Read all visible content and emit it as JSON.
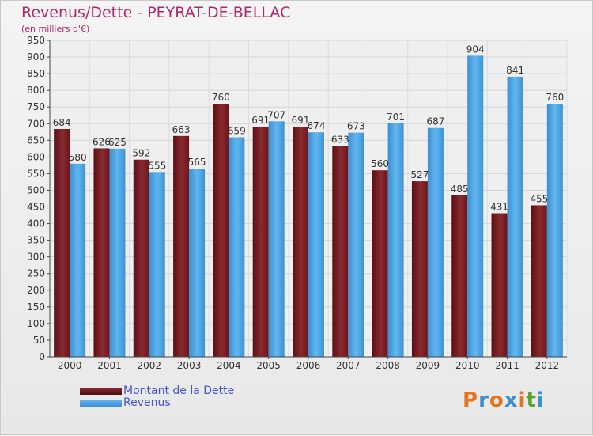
{
  "title": "Revenus/Dette - PEYRAT-DE-BELLAC",
  "subtitle": "(en milliers d'€)",
  "logo_text": "Proxiti",
  "chart_data": {
    "type": "bar",
    "title": "Revenus/Dette - PEYRAT-DE-BELLAC",
    "ylabel": "(en milliers d'€)",
    "ylim": [
      0,
      950
    ],
    "ytick_step": 50,
    "grid": true,
    "legend_position": "bottom-left",
    "categories": [
      "2000",
      "2001",
      "2002",
      "2003",
      "2004",
      "2005",
      "2006",
      "2007",
      "2008",
      "2009",
      "2010",
      "2011",
      "2012"
    ],
    "series": [
      {
        "name": "Montant de la Dette",
        "color": "#7a1f24",
        "values": [
          684,
          626,
          592,
          663,
          760,
          691,
          691,
          633,
          560,
          527,
          485,
          431,
          455
        ]
      },
      {
        "name": "Revenus",
        "color": "#4aa3e0",
        "values": [
          580,
          625,
          555,
          565,
          659,
          707,
          674,
          673,
          701,
          687,
          904,
          841,
          760
        ]
      }
    ]
  }
}
